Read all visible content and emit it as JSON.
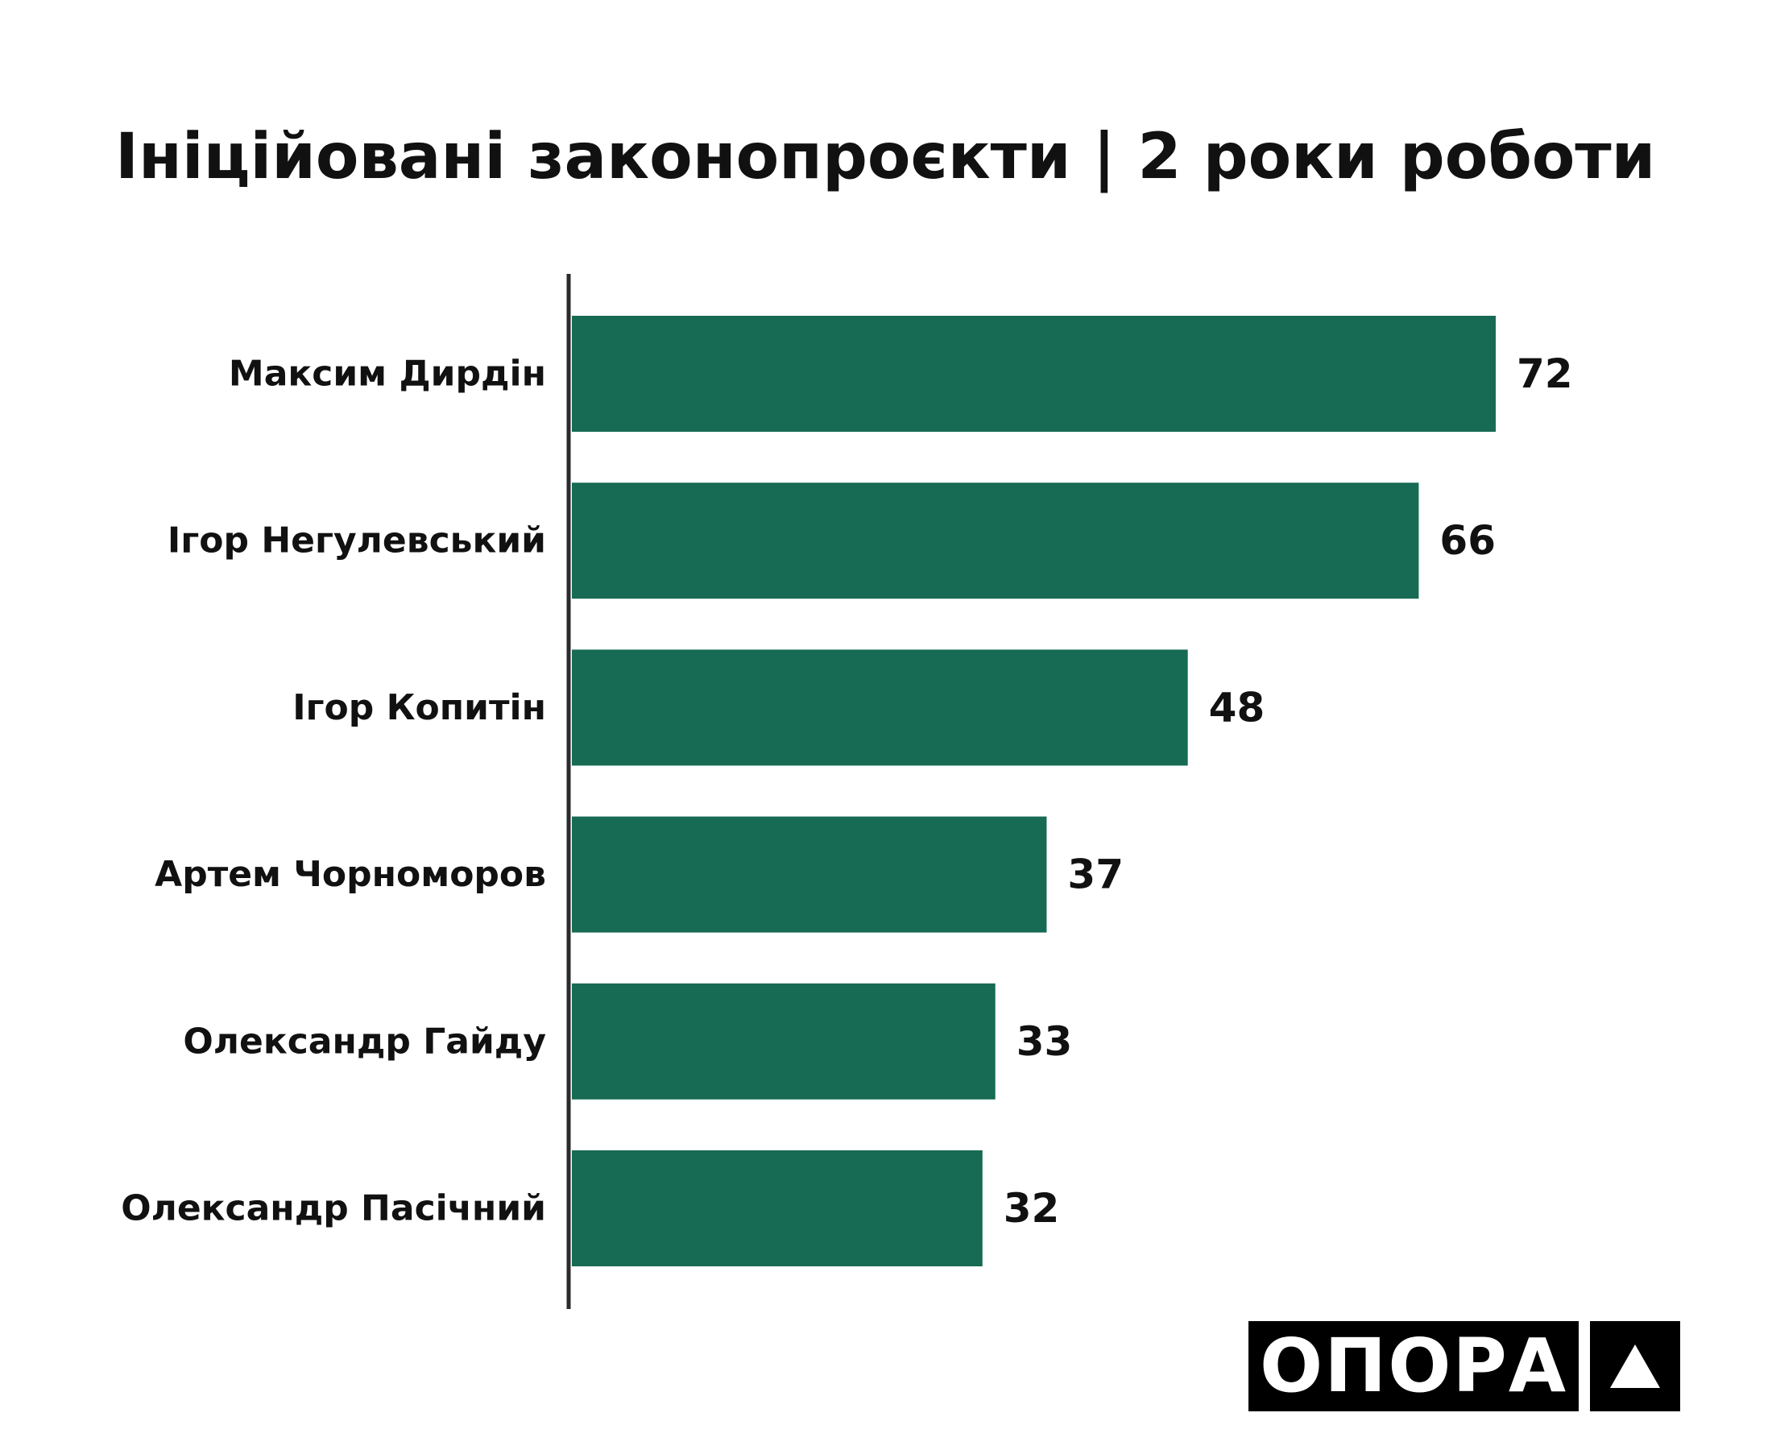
{
  "chart_data": {
    "type": "bar",
    "orientation": "horizontal",
    "title": "Ініційовані законопроєкти | 2 роки роботи",
    "categories": [
      "Максим Дирдін",
      "Ігор Негулевський",
      "Ігор Копитін",
      "Артем Чорноморов",
      "Олександр Гайду",
      "Олександр Пасічний"
    ],
    "values": [
      72,
      66,
      48,
      37,
      33,
      32
    ],
    "xlim": [
      0,
      72
    ],
    "grid": false,
    "bar_color": "#176a53",
    "axis_color": "#2b2b2b",
    "label_color": "#111111"
  },
  "logo": {
    "text": "ОПОРА",
    "mark": "triangle-icon"
  }
}
